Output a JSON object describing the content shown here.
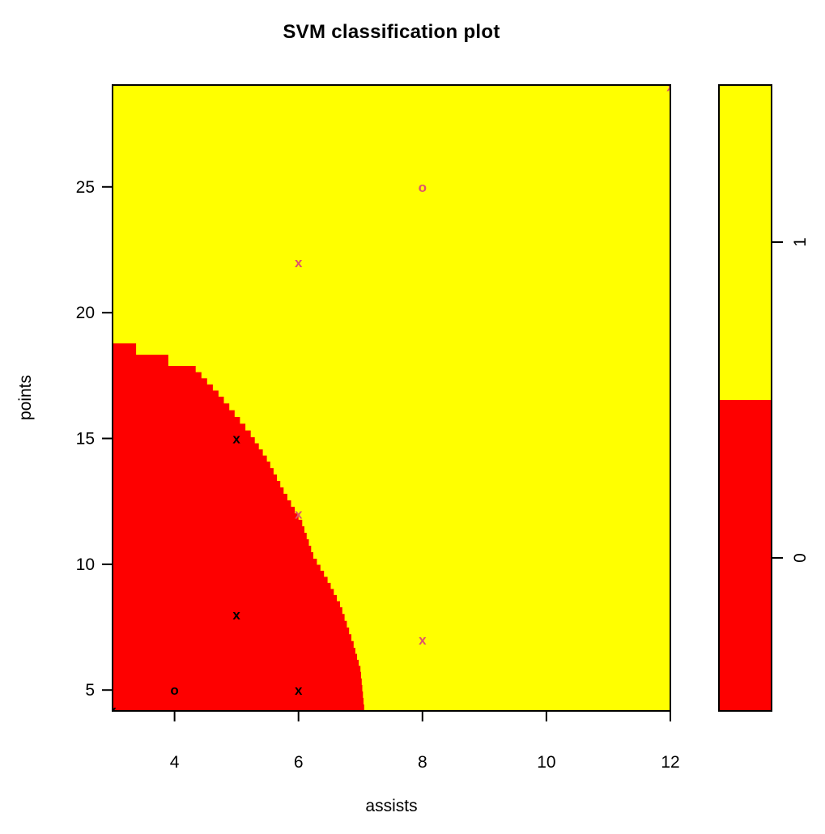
{
  "figure": {
    "title": "SVM classification plot",
    "x_axis_label": "assists",
    "y_axis_label": "points"
  },
  "colorbar": {
    "top_label": "1",
    "bottom_label": "0",
    "top_color": "#FFFF00",
    "bottom_color": "#FE0000"
  },
  "chart_data": {
    "type": "scatter",
    "subtype": "svm-decision-region-plot",
    "title": "SVM classification plot",
    "xlabel": "assists",
    "ylabel": "points",
    "xlim": [
      3.0,
      12.0
    ],
    "ylim": [
      4.17,
      29.05
    ],
    "x_ticks": [
      4,
      6,
      8,
      10,
      12
    ],
    "y_ticks": [
      5,
      10,
      15,
      20,
      25
    ],
    "grid": false,
    "legend_position": "right-colorbar",
    "colorbar_labels": [
      "1",
      "0"
    ],
    "colors": {
      "region_class1": "#FFFF00",
      "region_class0": "#FE0000",
      "symbol_class0": "#000000",
      "symbol_class1": "#DF536B",
      "axis": "#000000",
      "background": "#FFFFFF"
    },
    "points": [
      {
        "x": 3.0,
        "y": 4.2,
        "symbol": "x",
        "class": 0
      },
      {
        "x": 4.0,
        "y": 5.0,
        "symbol": "o",
        "class": 0
      },
      {
        "x": 5.0,
        "y": 8.0,
        "symbol": "x",
        "class": 0
      },
      {
        "x": 5.0,
        "y": 15.0,
        "symbol": "x",
        "class": 0
      },
      {
        "x": 6.0,
        "y": 5.0,
        "symbol": "x",
        "class": 0
      },
      {
        "x": 6.0,
        "y": 12.0,
        "symbol": "x",
        "class": 1
      },
      {
        "x": 6.0,
        "y": 22.0,
        "symbol": "x",
        "class": 1
      },
      {
        "x": 8.0,
        "y": 7.0,
        "symbol": "x",
        "class": 1
      },
      {
        "x": 8.0,
        "y": 25.0,
        "symbol": "o",
        "class": 1
      },
      {
        "x": 12.0,
        "y": 29.0,
        "symbol": "x",
        "class": 1
      }
    ],
    "decision_boundary": [
      [
        3.0,
        18.78
      ],
      [
        3.38,
        18.78
      ],
      [
        3.38,
        18.33
      ],
      [
        3.9,
        18.33
      ],
      [
        3.9,
        17.88
      ],
      [
        4.25,
        17.88
      ],
      [
        4.71,
        16.66
      ],
      [
        5.23,
        15.05
      ],
      [
        5.49,
        14.08
      ],
      [
        5.76,
        12.8
      ],
      [
        6.06,
        11.51
      ],
      [
        6.24,
        10.22
      ],
      [
        6.47,
        9.26
      ],
      [
        6.67,
        8.29
      ],
      [
        6.89,
        6.68
      ],
      [
        7.0,
        5.72
      ],
      [
        7.06,
        4.17
      ]
    ]
  }
}
